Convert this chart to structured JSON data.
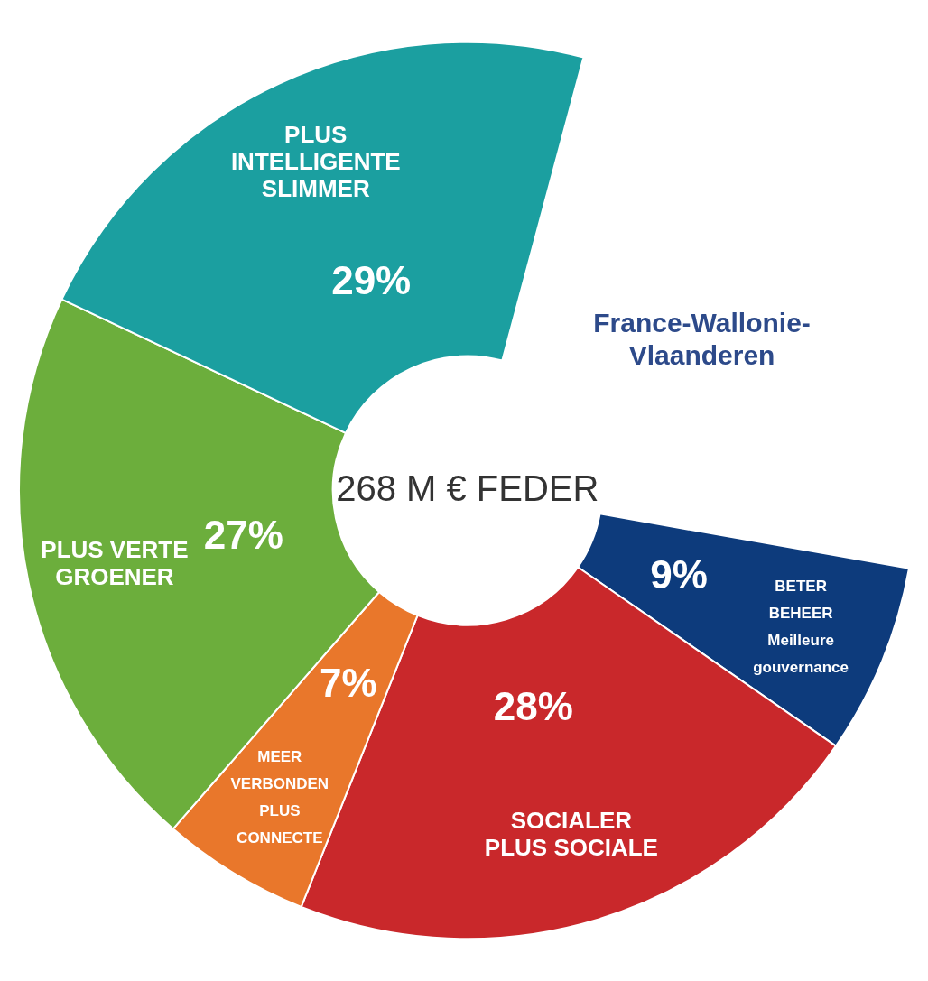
{
  "chart_data": {
    "type": "donut",
    "title": "268 M € FEDER",
    "annotations": [
      "France-Wallonie-Vlaanderen"
    ],
    "categories": [
      "BETER BEHEER Meilleure gouvernance",
      "SOCIALER PLUS SOCIALE",
      "MEER VERBONDEN PLUS CONNECTE",
      "PLUS VERTE GROENER",
      "PLUS INTELLIGENTE SLIMMER"
    ],
    "values": [
      9,
      28,
      7,
      27,
      29
    ],
    "value_labels": [
      "9%",
      "28%",
      "7%",
      "27%",
      "29%"
    ],
    "colors": [
      "#0d3b7c",
      "#c9282b",
      "#e9772b",
      "#6cae3c",
      "#1b9fa0"
    ],
    "legend": false
  }
}
